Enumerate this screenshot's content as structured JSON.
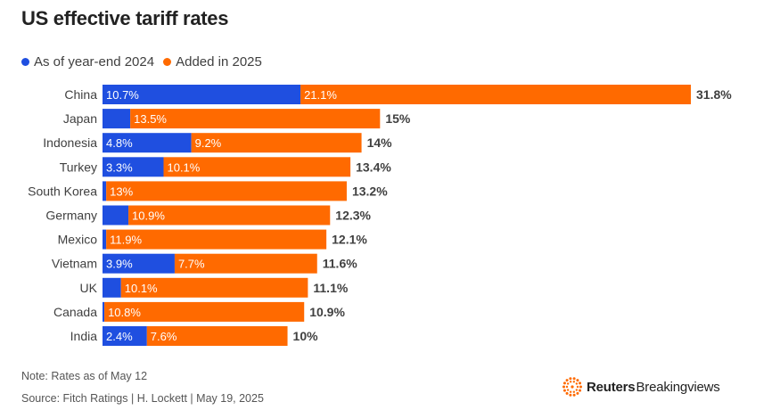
{
  "chart_data": {
    "type": "bar",
    "orientation": "horizontal",
    "stacked": true,
    "title": "US effective tariff rates",
    "categories": [
      "China",
      "Japan",
      "Indonesia",
      "Turkey",
      "South Korea",
      "Germany",
      "Mexico",
      "Vietnam",
      "UK",
      "Canada",
      "India"
    ],
    "series": [
      {
        "name": "As of year-end 2024",
        "color": "#1f4fe0",
        "values": [
          10.7,
          1.5,
          4.8,
          3.3,
          0.2,
          1.4,
          0.2,
          3.9,
          1.0,
          0.1,
          2.4
        ],
        "labels": [
          "10.7%",
          "",
          "4.8%",
          "3.3%",
          "",
          "",
          "",
          "3.9%",
          "",
          "",
          "2.4%"
        ]
      },
      {
        "name": "Added in 2025",
        "color": "#ff6a00",
        "values": [
          21.1,
          13.5,
          9.2,
          10.1,
          13.0,
          10.9,
          11.9,
          7.7,
          10.1,
          10.8,
          7.6
        ],
        "labels": [
          "21.1%",
          "13.5%",
          "9.2%",
          "10.1%",
          "13%",
          "10.9%",
          "11.9%",
          "7.7%",
          "10.1%",
          "10.8%",
          "7.6%"
        ]
      }
    ],
    "totals": [
      "31.8%",
      "15%",
      "14%",
      "13.4%",
      "13.2%",
      "12.3%",
      "12.1%",
      "11.6%",
      "11.1%",
      "10.9%",
      "10%"
    ],
    "xlim": [
      0,
      31.8
    ],
    "legend_position": "top-left",
    "grid": false
  },
  "footer": {
    "note": "Note: Rates as of May 12",
    "source": "Source: Fitch Ratings | H. Lockett | May 19, 2025"
  },
  "brand": {
    "strong": "Reuters",
    "light": "Breakingviews",
    "logo_icon": "reuters-dot-logo",
    "logo_color": "#ff6a00"
  }
}
